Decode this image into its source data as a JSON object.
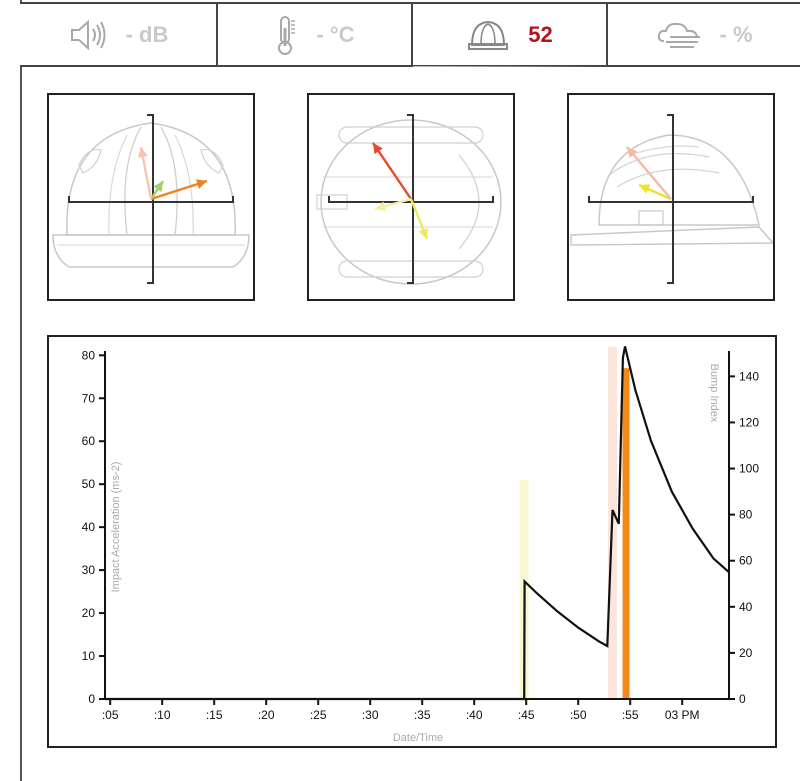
{
  "tabs": [
    {
      "icon": "speaker-icon",
      "value": "- dB",
      "active": false
    },
    {
      "icon": "thermometer-icon",
      "value": "- °C",
      "active": false
    },
    {
      "icon": "helmet-icon",
      "value": "52",
      "active": true
    },
    {
      "icon": "humidity-cloud-icon",
      "value": "- %",
      "active": false
    }
  ],
  "views": [
    {
      "name": "front-view",
      "vectors": [
        {
          "dx": 0.28,
          "dy": -0.09,
          "color": "#f0821e"
        },
        {
          "dx": 0.06,
          "dy": -0.09,
          "color": "#9fd06a"
        },
        {
          "dx": -0.05,
          "dy": -0.26,
          "color": "#f7c4b4"
        }
      ]
    },
    {
      "name": "top-view",
      "vectors": [
        {
          "dx": -0.19,
          "dy": -0.28,
          "color": "#e8492b"
        },
        {
          "dx": 0.08,
          "dy": 0.2,
          "color": "#f2e860"
        },
        {
          "dx": -0.18,
          "dy": 0.05,
          "color": "#f7f0a0"
        }
      ]
    },
    {
      "name": "side-view",
      "vectors": [
        {
          "dx": -0.16,
          "dy": -0.07,
          "color": "#f2df2e"
        },
        {
          "dx": -0.22,
          "dy": -0.26,
          "color": "#f7b8a8"
        }
      ]
    }
  ],
  "chart_data": {
    "type": "line",
    "xlabel": "Date/Time",
    "ylabel_left": "Impact Acceleration (ms-2)",
    "ylabel_right": "Bump Index",
    "x_ticks": [
      ":05",
      ":10",
      ":15",
      ":20",
      ":25",
      ":30",
      ":35",
      ":40",
      ":45",
      ":50",
      ":55",
      "03 PM"
    ],
    "x_tick_minutes": [
      5,
      10,
      15,
      20,
      25,
      30,
      35,
      40,
      45,
      50,
      55,
      60
    ],
    "xlim_minutes": [
      4.5,
      64.5
    ],
    "y_left_ticks": [
      0,
      10,
      20,
      30,
      40,
      50,
      60,
      70,
      80
    ],
    "y_left_lim": [
      0,
      81
    ],
    "y_right_ticks": [
      0,
      20,
      40,
      60,
      80,
      100,
      120,
      140
    ],
    "y_right_lim": [
      0,
      151
    ],
    "impact_bars": [
      {
        "minute": 44.8,
        "value": 51,
        "color": "#f7f7d0"
      },
      {
        "minute": 53.3,
        "value": 82,
        "color": "#fbe6dd"
      },
      {
        "minute": 54.6,
        "value": 77,
        "color": "#f28a1a"
      }
    ],
    "bump_index_series": {
      "name": "Bump Index",
      "x_minutes": [
        4.5,
        9.0,
        44.8,
        44.81,
        44.85,
        46,
        48,
        50,
        52,
        52.8,
        53.3,
        53.9,
        54.3,
        54.5,
        55.5,
        57,
        59,
        61,
        63,
        64.5
      ],
      "values": [
        0,
        0,
        0,
        0,
        51,
        46,
        38,
        31,
        25,
        23,
        82,
        76,
        148,
        153,
        134,
        112,
        90,
        74,
        61,
        55
      ],
      "color": "#111111"
    }
  }
}
